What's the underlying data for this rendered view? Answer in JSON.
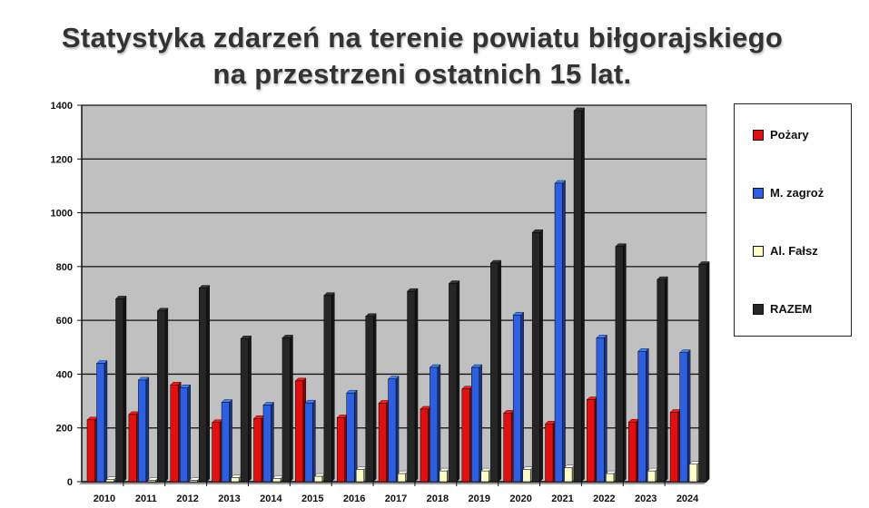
{
  "chart_data": {
    "type": "bar",
    "title_line1": "Statystyka zdarzeń na terenie powiatu biłgorajskiego",
    "title_line2": "na przestrzeni ostatnich 15 lat.",
    "categories": [
      "2010",
      "2011",
      "2012",
      "2013",
      "2014",
      "2015",
      "2016",
      "2017",
      "2018",
      "2019",
      "2020",
      "2021",
      "2022",
      "2023",
      "2024"
    ],
    "series": [
      {
        "name": "Pożary",
        "color": "#e01010",
        "values": [
          230,
          250,
          360,
          220,
          235,
          375,
          238,
          292,
          270,
          345,
          255,
          215,
          305,
          222,
          258
        ]
      },
      {
        "name": "M. zagroż",
        "color": "#2e5fe0",
        "values": [
          440,
          378,
          350,
          295,
          285,
          293,
          330,
          382,
          425,
          425,
          620,
          1110,
          535,
          485,
          480
        ]
      },
      {
        "name": "Al. Fałsz",
        "color": "#fdfdc8",
        "values": [
          8,
          5,
          5,
          15,
          12,
          20,
          45,
          30,
          40,
          40,
          45,
          52,
          30,
          40,
          65
        ]
      },
      {
        "name": "RAZEM",
        "color": "#262626",
        "values": [
          680,
          635,
          720,
          532,
          535,
          693,
          615,
          708,
          737,
          813,
          927,
          1380,
          875,
          752,
          808
        ]
      }
    ],
    "ylim": [
      0,
      1400
    ],
    "yticks": [
      0,
      200,
      400,
      600,
      800,
      1000,
      1200,
      1400
    ],
    "grid": true,
    "legend_position": "right",
    "plot_background": "#c0c0c0"
  }
}
